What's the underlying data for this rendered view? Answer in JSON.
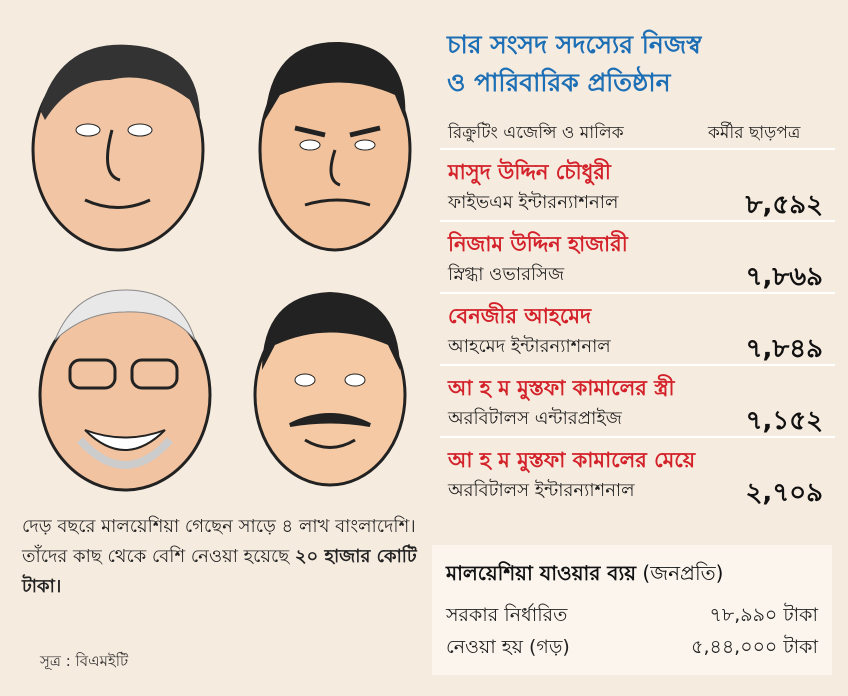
{
  "title": [
    "চার সংসদ সদস্যের নিজস্ব",
    "ও পারিবারিক প্রতিষ্ঠান"
  ],
  "table": {
    "header": [
      "রিক্রুটিং এজেন্সি ও মালিক",
      "কর্মীর ছাড়পত্র"
    ],
    "rows": [
      [
        "মাসুদ উদ্দিন চৌধুরী",
        "ফাইভএম ইন্টারন্যাশনাল",
        "৮,৫৯২"
      ],
      [
        "নিজাম উদ্দিন হাজারী",
        "স্নিগ্ধা ওভারসিজ",
        "৭,৮৬৯"
      ],
      [
        "বেনজীর আহমেদ",
        "আহমেদ ইন্টারন্যাশনাল",
        "৭,৮৪৯"
      ],
      [
        "আ হ ম মুস্তফা কামালের স্ত্রী",
        "অরবিটালস এন্টারপ্রাইজ",
        "৭,১৫২"
      ],
      [
        "আ হ ম মুস্তফা কামালের মেয়ে",
        "অরবিটালস ইন্টারন্যাশনাল",
        "২,৭০৯"
      ]
    ]
  },
  "note": {
    "text": "দেড় বছরে মালয়েশিয়া গেছেন সাড়ে ৪ লাখ বাংলাদেশি। তাঁদের কাছ থেকে বেশি নেওয়া হয়েছে ",
    "highlight": "২০ হাজার কোটি টাকা।"
  },
  "source": "সূত্র : বিএমইটি",
  "cost": {
    "title": "মালয়েশিয়া যাওয়ার ব্যয়",
    "subtitle": "(জনপ্রতি)",
    "rows": [
      [
        "সরকার নির্ধারিত",
        "৭৮,৯৯০ টাকা"
      ],
      [
        "নেওয়া হয় (গড়)",
        "৫,৪৪,০০০ টাকা"
      ]
    ]
  }
}
